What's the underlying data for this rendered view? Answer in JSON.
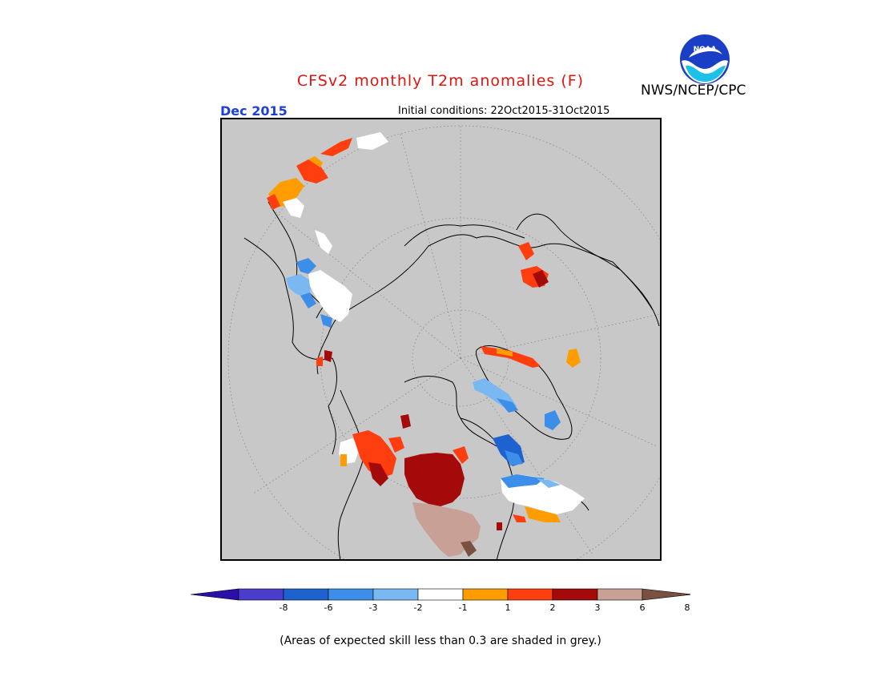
{
  "title": "CFSv2 monthly T2m anomalies (F)",
  "agency": "NWS/NCEP/CPC",
  "logo_text": "NOAA",
  "month_label": "Dec 2015",
  "initial_conditions": "Initial conditions: 22Oct2015-31Oct2015",
  "footnote": "(Areas of expected skill less than 0.3 are shaded in grey.)",
  "colors": {
    "title": "#e0140f",
    "month": "#1f3fd6",
    "skill_grey": "#c8c8c8"
  },
  "legend": {
    "ticks": [
      "-8",
      "-6",
      "-3",
      "-2",
      "-1",
      "1",
      "2",
      "3",
      "6",
      "8"
    ],
    "colors": [
      "#2b0fa6",
      "#4a3ccc",
      "#1e62d0",
      "#3c8ee8",
      "#7ab8f2",
      "#ffffff",
      "#ff9d00",
      "#ff3e10",
      "#a50a0a",
      "#c8a096",
      "#7a5040"
    ]
  }
}
